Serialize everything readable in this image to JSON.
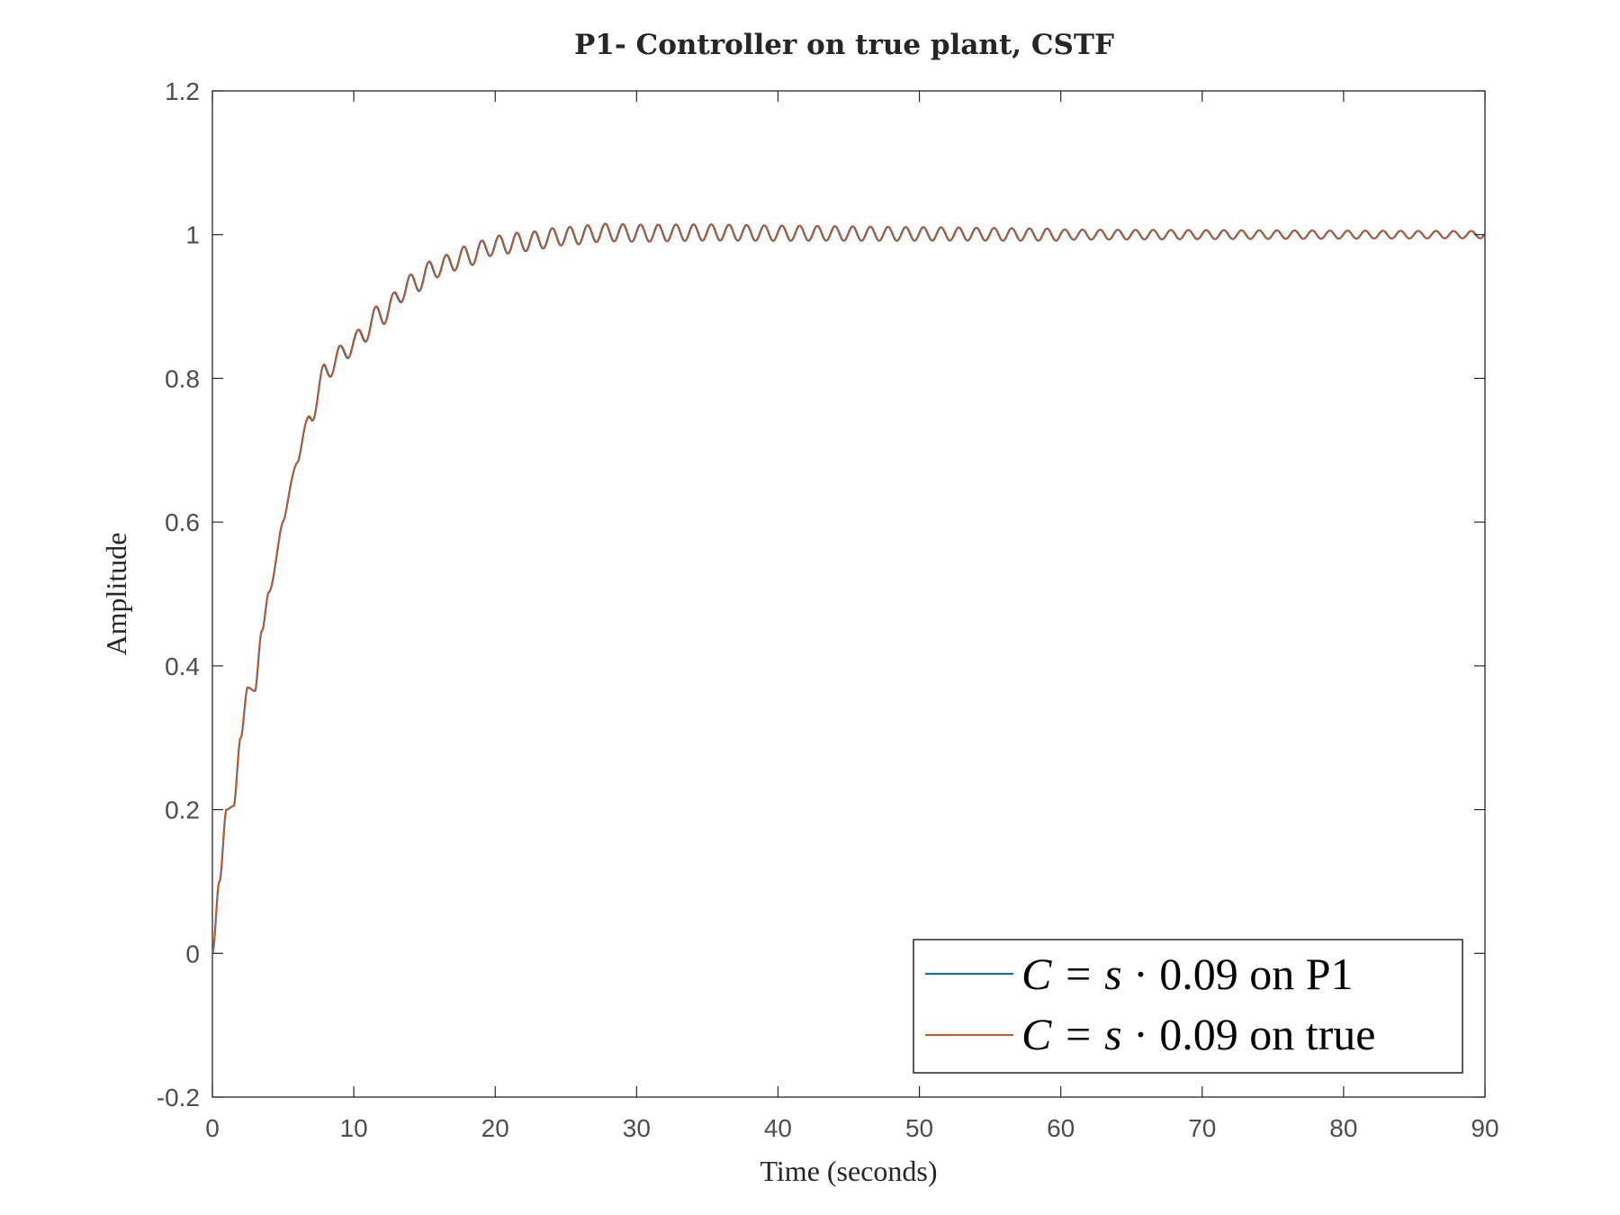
{
  "chart_data": {
    "type": "line",
    "title": "P1- Controller on true plant, CSTF",
    "xlabel": "Time (seconds)",
    "ylabel": "Amplitude",
    "xlim": [
      0,
      90
    ],
    "ylim": [
      -0.2,
      1.2
    ],
    "xticks": [
      0,
      10,
      20,
      30,
      40,
      50,
      60,
      70,
      80,
      90
    ],
    "yticks": [
      -0.2,
      0,
      0.2,
      0.4,
      0.6,
      0.8,
      1,
      1.2
    ],
    "xtick_labels": [
      "0",
      "10",
      "20",
      "30",
      "40",
      "50",
      "60",
      "70",
      "80",
      "90"
    ],
    "ytick_labels": [
      "-0.2",
      "0",
      "0.2",
      "0.4",
      "0.6",
      "0.8",
      "1",
      "1.2"
    ],
    "grid": false,
    "legend_position": "bottom-right",
    "series": [
      {
        "name": "C = s · 0.09 on P1",
        "color": "#0072BD",
        "x": [
          0,
          0.5,
          1.0,
          1.5,
          2.0,
          2.5,
          3.0,
          3.5,
          4.0,
          5.0,
          6.0,
          7.0,
          8.0,
          9.0,
          10.0,
          12.0,
          14.0,
          16.0,
          18.0,
          20.0,
          22.0,
          25.0,
          28.0,
          30.0,
          35.0,
          40.0,
          50.0,
          60.0,
          70.0,
          80.0,
          90.0
        ],
        "y": [
          0,
          0.1,
          0.2,
          0.205,
          0.3,
          0.37,
          0.365,
          0.45,
          0.5,
          0.6,
          0.69,
          0.75,
          0.81,
          0.83,
          0.85,
          0.89,
          0.93,
          0.955,
          0.97,
          0.985,
          0.99,
          0.998,
          1.003,
          1.002,
          1.003,
          1.002,
          1.001,
          1.0,
          1.0,
          1.0,
          1.0
        ]
      },
      {
        "name": "C = s · 0.09 on true",
        "color": "#D95319",
        "x": [
          0,
          0.5,
          1.0,
          1.5,
          2.0,
          2.5,
          3.0,
          3.5,
          4.0,
          5.0,
          6.0,
          7.0,
          8.0,
          9.0,
          10.0,
          12.0,
          14.0,
          16.0,
          18.0,
          20.0,
          22.0,
          25.0,
          28.0,
          30.0,
          35.0,
          40.0,
          50.0,
          60.0,
          70.0,
          80.0,
          90.0
        ],
        "y": [
          0,
          0.1,
          0.2,
          0.205,
          0.3,
          0.37,
          0.365,
          0.45,
          0.5,
          0.6,
          0.69,
          0.75,
          0.81,
          0.83,
          0.85,
          0.89,
          0.93,
          0.955,
          0.97,
          0.985,
          0.99,
          0.998,
          1.003,
          1.002,
          1.003,
          1.002,
          1.001,
          1.0,
          1.0,
          1.0,
          1.0
        ]
      }
    ],
    "legend": [
      {
        "math": "C = s",
        "rest": " · 0.09 on P1",
        "color": "#0072BD"
      },
      {
        "math": "C = s",
        "rest": " · 0.09 on true",
        "color": "#D95319"
      }
    ]
  }
}
